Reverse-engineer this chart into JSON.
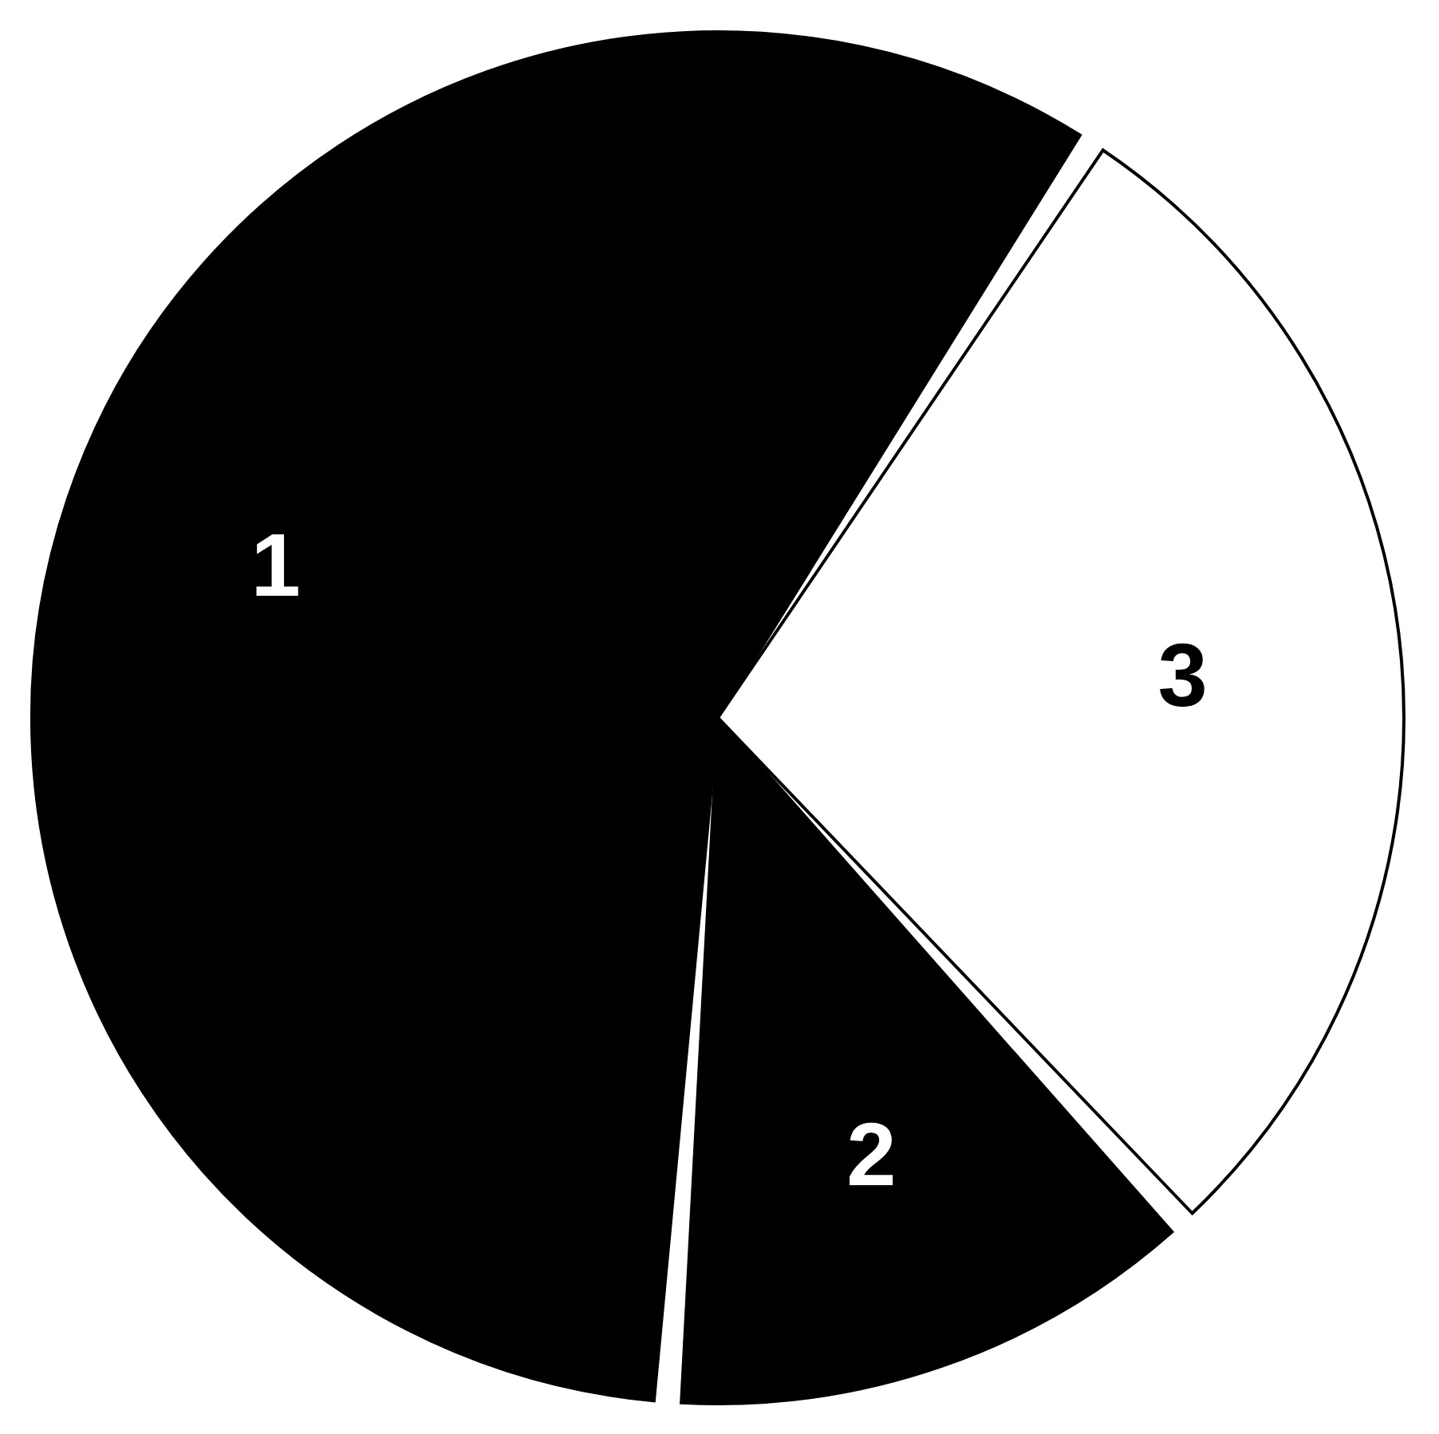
{
  "chart_data": {
    "type": "pie",
    "categories": [
      "1",
      "2",
      "3"
    ],
    "values": [
      58,
      13,
      29
    ],
    "colors": [
      "#000000",
      "#000000",
      "#ffffff"
    ],
    "legend": false
  }
}
